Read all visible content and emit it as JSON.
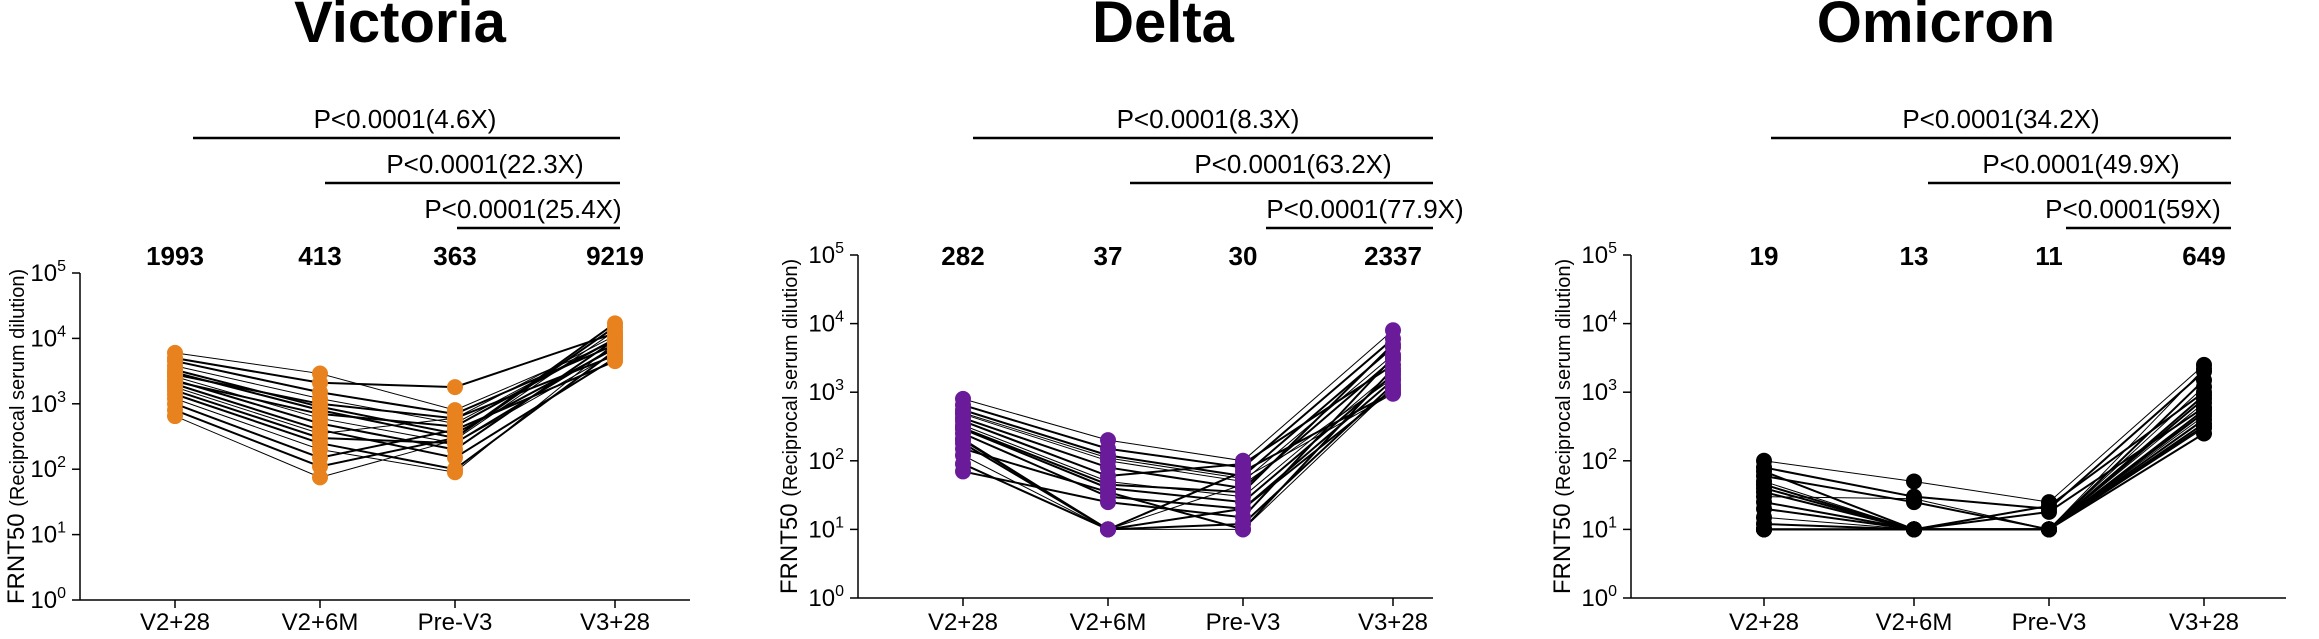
{
  "chart_data": [
    {
      "type": "scatter",
      "title": "Victoria",
      "ylabel_main": "FRNT50",
      "ylabel_sub": "(Reciprocal serum dilution)",
      "yscale": "log",
      "ylim": [
        1,
        100000
      ],
      "yticks": [
        {
          "value": 1,
          "base": "10",
          "exp": "0"
        },
        {
          "value": 10,
          "base": "10",
          "exp": "1"
        },
        {
          "value": 100,
          "base": "10",
          "exp": "2"
        },
        {
          "value": 1000,
          "base": "10",
          "exp": "3"
        },
        {
          "value": 10000,
          "base": "10",
          "exp": "4"
        },
        {
          "value": 100000,
          "base": "10",
          "exp": "5"
        }
      ],
      "categories": [
        "V2+28",
        "V2+6M",
        "Pre-V3",
        "V3+28"
      ],
      "geometric_means": [
        "1993",
        "413",
        "363",
        "9219"
      ],
      "marker_color": "#E8821E",
      "comparisons": [
        {
          "from": 0,
          "to": 3,
          "label": "P<0.0001(4.6X)"
        },
        {
          "from": 1,
          "to": 3,
          "label": "P<0.0001(22.3X)"
        },
        {
          "from": 2,
          "to": 3,
          "label": "P<0.0001(25.4X)"
        }
      ],
      "subjects": [
        [
          6000,
          2900,
          800,
          9000
        ],
        [
          5000,
          2100,
          1800,
          12000
        ],
        [
          4500,
          1500,
          700,
          8000
        ],
        [
          3800,
          1200,
          500,
          10000
        ],
        [
          3300,
          900,
          350,
          7000
        ],
        [
          3000,
          800,
          300,
          15000
        ],
        [
          2600,
          600,
          250,
          6000
        ],
        [
          2300,
          500,
          200,
          9500
        ],
        [
          2000,
          400,
          150,
          5000
        ],
        [
          1800,
          350,
          600,
          11000
        ],
        [
          1600,
          300,
          250,
          7500
        ],
        [
          1400,
          250,
          100,
          6500
        ],
        [
          1200,
          200,
          90,
          8500
        ],
        [
          1000,
          150,
          400,
          4500
        ],
        [
          800,
          110,
          300,
          17000
        ],
        [
          650,
          75,
          280,
          13000
        ],
        [
          2800,
          1000,
          600,
          5500
        ],
        [
          2200,
          700,
          450,
          9800
        ]
      ]
    },
    {
      "type": "scatter",
      "title": "Delta",
      "ylabel_main": "FRNT50",
      "ylabel_sub": "(Reciprocal serum dilution)",
      "yscale": "log",
      "ylim": [
        1,
        100000
      ],
      "yticks": [
        {
          "value": 1,
          "base": "10",
          "exp": "0"
        },
        {
          "value": 10,
          "base": "10",
          "exp": "1"
        },
        {
          "value": 100,
          "base": "10",
          "exp": "2"
        },
        {
          "value": 1000,
          "base": "10",
          "exp": "3"
        },
        {
          "value": 10000,
          "base": "10",
          "exp": "4"
        },
        {
          "value": 100000,
          "base": "10",
          "exp": "5"
        }
      ],
      "categories": [
        "V2+28",
        "V2+6M",
        "Pre-V3",
        "V3+28"
      ],
      "geometric_means": [
        "282",
        "37",
        "30",
        "2337"
      ],
      "marker_color": "#6A1B9A",
      "comparisons": [
        {
          "from": 0,
          "to": 3,
          "label": "P<0.0001(8.3X)"
        },
        {
          "from": 1,
          "to": 3,
          "label": "P<0.0001(63.2X)"
        },
        {
          "from": 2,
          "to": 3,
          "label": "P<0.0001(77.9X)"
        }
      ],
      "subjects": [
        [
          800,
          200,
          100,
          8000
        ],
        [
          650,
          150,
          80,
          6000
        ],
        [
          550,
          120,
          60,
          4500
        ],
        [
          480,
          100,
          50,
          3500
        ],
        [
          420,
          80,
          40,
          3000
        ],
        [
          380,
          60,
          90,
          2500
        ],
        [
          330,
          50,
          30,
          2000
        ],
        [
          290,
          40,
          25,
          1800
        ],
        [
          250,
          30,
          20,
          1500
        ],
        [
          210,
          10,
          10,
          1200
        ],
        [
          180,
          10,
          70,
          1000
        ],
        [
          150,
          35,
          10,
          2200
        ],
        [
          120,
          10,
          45,
          1600
        ],
        [
          90,
          10,
          20,
          1100
        ],
        [
          70,
          25,
          15,
          3200
        ],
        [
          500,
          110,
          55,
          950
        ],
        [
          300,
          45,
          35,
          5000
        ],
        [
          200,
          10,
          12,
          1300
        ]
      ]
    },
    {
      "type": "scatter",
      "title": "Omicron",
      "ylabel_main": "FRNT50",
      "ylabel_sub": "(Reciprocal serum dilution)",
      "yscale": "log",
      "ylim": [
        1,
        100000
      ],
      "yticks": [
        {
          "value": 1,
          "base": "10",
          "exp": "0"
        },
        {
          "value": 10,
          "base": "10",
          "exp": "1"
        },
        {
          "value": 100,
          "base": "10",
          "exp": "2"
        },
        {
          "value": 1000,
          "base": "10",
          "exp": "3"
        },
        {
          "value": 10000,
          "base": "10",
          "exp": "4"
        },
        {
          "value": 100000,
          "base": "10",
          "exp": "5"
        }
      ],
      "categories": [
        "V2+28",
        "V2+6M",
        "Pre-V3",
        "V3+28"
      ],
      "geometric_means": [
        "19",
        "13",
        "11",
        "649"
      ],
      "marker_color": "#000000",
      "comparisons": [
        {
          "from": 0,
          "to": 3,
          "label": "P<0.0001(34.2X)"
        },
        {
          "from": 1,
          "to": 3,
          "label": "P<0.0001(49.9X)"
        },
        {
          "from": 2,
          "to": 3,
          "label": "P<0.0001(59X)"
        }
      ],
      "subjects": [
        [
          100,
          50,
          25,
          2500
        ],
        [
          80,
          30,
          20,
          2000
        ],
        [
          60,
          25,
          10,
          1500
        ],
        [
          50,
          10,
          10,
          1200
        ],
        [
          40,
          10,
          22,
          1000
        ],
        [
          35,
          10,
          10,
          800
        ],
        [
          30,
          28,
          10,
          700
        ],
        [
          25,
          10,
          18,
          600
        ],
        [
          20,
          10,
          10,
          500
        ],
        [
          10,
          10,
          10,
          450
        ],
        [
          10,
          10,
          10,
          400
        ],
        [
          45,
          10,
          10,
          350
        ],
        [
          15,
          10,
          10,
          300
        ],
        [
          10,
          10,
          10,
          250
        ],
        [
          70,
          10,
          10,
          900
        ],
        [
          10,
          10,
          10,
          2200
        ],
        [
          10,
          10,
          10,
          320
        ],
        [
          12,
          10,
          10,
          550
        ]
      ]
    }
  ]
}
